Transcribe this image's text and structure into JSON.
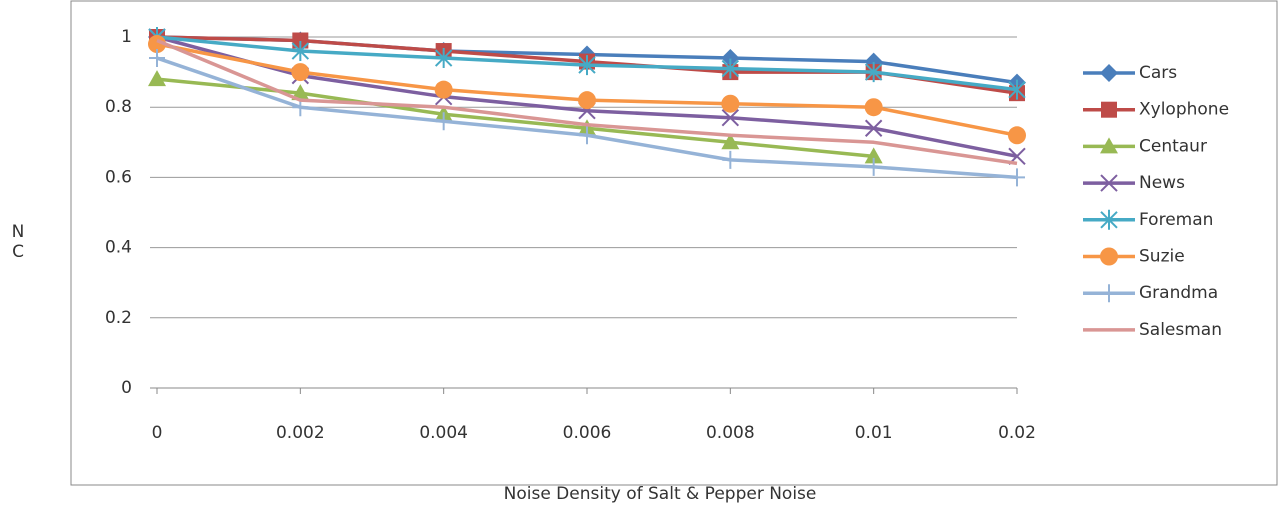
{
  "chart_data": {
    "type": "line",
    "x_label": "Noise Density of Salt & Pepper Noise",
    "y_label": "NC",
    "categories": [
      "0",
      "0.002",
      "0.004",
      "0.006",
      "0.008",
      "0.01",
      "0.02"
    ],
    "ylim": [
      0,
      1
    ],
    "yticks": [
      0,
      0.2,
      0.4,
      0.6,
      0.8,
      1
    ],
    "grid": true,
    "legend": "right",
    "series": [
      {
        "name": "Cars",
        "color": "#4a7ebb",
        "marker": "diamond",
        "values": [
          1.0,
          0.99,
          0.96,
          0.95,
          0.94,
          0.93,
          0.87
        ]
      },
      {
        "name": "Xylophone",
        "color": "#be4b48",
        "marker": "square",
        "values": [
          1.0,
          0.99,
          0.96,
          0.93,
          0.9,
          0.9,
          0.84
        ]
      },
      {
        "name": "Centaur",
        "color": "#98b954",
        "marker": "triangle",
        "values": [
          0.88,
          0.84,
          0.78,
          0.74,
          0.7,
          0.66,
          null
        ]
      },
      {
        "name": "News",
        "color": "#7d5fa0",
        "marker": "x",
        "values": [
          1.0,
          0.89,
          0.83,
          0.79,
          0.77,
          0.74,
          0.66
        ]
      },
      {
        "name": "Foreman",
        "color": "#46aac5",
        "marker": "star",
        "values": [
          1.0,
          0.96,
          0.94,
          0.92,
          0.91,
          0.9,
          0.85
        ]
      },
      {
        "name": "Suzie",
        "color": "#f79646",
        "marker": "circle",
        "values": [
          0.98,
          0.9,
          0.85,
          0.82,
          0.81,
          0.8,
          0.72
        ]
      },
      {
        "name": "Grandma",
        "color": "#95b3d7",
        "marker": "plus",
        "values": [
          0.94,
          0.8,
          0.76,
          0.72,
          0.65,
          0.63,
          0.6
        ]
      },
      {
        "name": "Salesman",
        "color": "#d99694",
        "marker": "none",
        "values": [
          0.99,
          0.82,
          0.8,
          0.75,
          0.72,
          0.7,
          0.64
        ]
      }
    ]
  }
}
